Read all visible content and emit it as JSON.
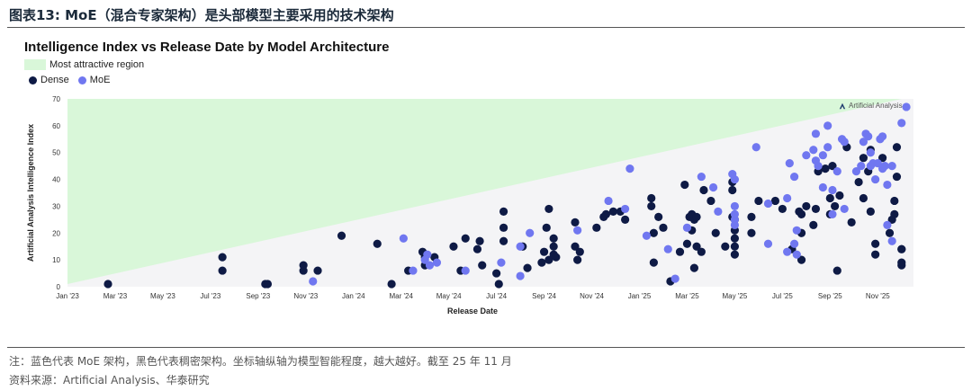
{
  "figure": {
    "title": "图表13:  MoE（混合专家架构）是头部模型主要采用的技术架构",
    "note": "注：蓝色代表 MoE 架构，黑色代表稠密架构。坐标轴纵轴为模型智能程度，越大越好。截至 25 年 11 月",
    "source": "资料来源：Artificial Analysis、华泰研究"
  },
  "watermark": "Artificial Analysis",
  "colors": {
    "dense": "#0e1a45",
    "moe": "#7077f0",
    "region": "#d9f7d9",
    "plot_bg": "#f4f4f6"
  },
  "chart_data": {
    "type": "scatter",
    "title": "Intelligence Index vs Release Date by Model Architecture",
    "xlabel": "Release Date",
    "ylabel": "Artificial Analysis Intelligence Index",
    "x_ticks": [
      "Jan '23",
      "Mar '23",
      "May '23",
      "Jul '23",
      "Sep '23",
      "Nov '23",
      "Jan '24",
      "Mar '24",
      "May '24",
      "Jul '24",
      "Sep '24",
      "Nov '24",
      "Jan '25",
      "Mar '25",
      "May '25",
      "Jul '25",
      "Sep '25",
      "Nov '25"
    ],
    "y_ticks": [
      0,
      10,
      20,
      30,
      40,
      50,
      60,
      70
    ],
    "ylim": [
      0,
      70
    ],
    "xlim": [
      "Jan '23",
      "Dec '25"
    ],
    "grid": false,
    "legend_position": "top-left",
    "region_label": "Most attractive region",
    "region": [
      {
        "x": 0,
        "y": 1
      },
      {
        "x": 35,
        "y": 70
      }
    ],
    "series": [
      {
        "name": "Dense",
        "points": [
          [
            1.7,
            1
          ],
          [
            6.5,
            11
          ],
          [
            6.5,
            6
          ],
          [
            8.3,
            1
          ],
          [
            8.4,
            1
          ],
          [
            9.9,
            6
          ],
          [
            9.9,
            8
          ],
          [
            10.5,
            6
          ],
          [
            11.5,
            19
          ],
          [
            13,
            16
          ],
          [
            13.6,
            1
          ],
          [
            14.3,
            6
          ],
          [
            14.9,
            13
          ],
          [
            15,
            11
          ],
          [
            15,
            8
          ],
          [
            15.4,
            11
          ],
          [
            16.2,
            15
          ],
          [
            16.5,
            6
          ],
          [
            16.7,
            18
          ],
          [
            17.2,
            14
          ],
          [
            17.3,
            17
          ],
          [
            17.4,
            8
          ],
          [
            18,
            5
          ],
          [
            18.1,
            1
          ],
          [
            18.3,
            17
          ],
          [
            18.3,
            22
          ],
          [
            18.3,
            28
          ],
          [
            19.1,
            15
          ],
          [
            19.3,
            7
          ],
          [
            19.9,
            9
          ],
          [
            20,
            13
          ],
          [
            20.1,
            22
          ],
          [
            20.2,
            10
          ],
          [
            20.2,
            29
          ],
          [
            20.4,
            12
          ],
          [
            20.4,
            15
          ],
          [
            20.4,
            18
          ],
          [
            20.5,
            11
          ],
          [
            21.3,
            24
          ],
          [
            21.3,
            15
          ],
          [
            21.4,
            10
          ],
          [
            21.5,
            13
          ],
          [
            22.2,
            22
          ],
          [
            22.5,
            26
          ],
          [
            22.6,
            27
          ],
          [
            22.9,
            28
          ],
          [
            23.2,
            28
          ],
          [
            23.4,
            25
          ],
          [
            24.5,
            33
          ],
          [
            24.5,
            30
          ],
          [
            24.6,
            20
          ],
          [
            24.6,
            9
          ],
          [
            24.8,
            26
          ],
          [
            25,
            22
          ],
          [
            25.3,
            2
          ],
          [
            25.7,
            13
          ],
          [
            25.9,
            38
          ],
          [
            26,
            16
          ],
          [
            26.1,
            26
          ],
          [
            26.2,
            27
          ],
          [
            26.2,
            21
          ],
          [
            26.3,
            25
          ],
          [
            26.3,
            7
          ],
          [
            26.4,
            15
          ],
          [
            26.4,
            26
          ],
          [
            26.6,
            13
          ],
          [
            26.7,
            36
          ],
          [
            27,
            32
          ],
          [
            27.2,
            20
          ],
          [
            27.6,
            15
          ],
          [
            27.9,
            39
          ],
          [
            27.9,
            36
          ],
          [
            27.9,
            26
          ],
          [
            28,
            25
          ],
          [
            28,
            21
          ],
          [
            28,
            18
          ],
          [
            28,
            15
          ],
          [
            28,
            12
          ],
          [
            28.7,
            26
          ],
          [
            28.7,
            20
          ],
          [
            29,
            32
          ],
          [
            29.7,
            32
          ],
          [
            30,
            29
          ],
          [
            30.4,
            14
          ],
          [
            30.7,
            28
          ],
          [
            30.8,
            20
          ],
          [
            30.8,
            10
          ],
          [
            30.8,
            27
          ],
          [
            31,
            30
          ],
          [
            31.3,
            23
          ],
          [
            31.4,
            29
          ],
          [
            31.5,
            43
          ],
          [
            31.8,
            44
          ],
          [
            32,
            33
          ],
          [
            32,
            27
          ],
          [
            32.1,
            45
          ],
          [
            32.2,
            30
          ],
          [
            32.3,
            6
          ],
          [
            32.4,
            34
          ],
          [
            32.7,
            52
          ],
          [
            32.9,
            24
          ],
          [
            33.2,
            39
          ],
          [
            33.4,
            48
          ],
          [
            33.4,
            33
          ],
          [
            33.6,
            43
          ],
          [
            33.7,
            51
          ],
          [
            33.7,
            28
          ],
          [
            33.9,
            12
          ],
          [
            33.9,
            16
          ],
          [
            34.2,
            48
          ],
          [
            34.5,
            20
          ],
          [
            34.6,
            25
          ],
          [
            34.7,
            27
          ],
          [
            34.7,
            32
          ],
          [
            34.8,
            52
          ],
          [
            34.8,
            41
          ],
          [
            35,
            14
          ],
          [
            35,
            14
          ],
          [
            35,
            8
          ],
          [
            35,
            9
          ]
        ]
      },
      {
        "name": "MoE",
        "points": [
          [
            10.3,
            2
          ],
          [
            14.1,
            18
          ],
          [
            14.5,
            6
          ],
          [
            15,
            10
          ],
          [
            15.1,
            12
          ],
          [
            15.2,
            8
          ],
          [
            15.5,
            9
          ],
          [
            16.7,
            6
          ],
          [
            18.2,
            9
          ],
          [
            19,
            15
          ],
          [
            19,
            4
          ],
          [
            19.4,
            20
          ],
          [
            21.4,
            21
          ],
          [
            22.7,
            32
          ],
          [
            23.4,
            29
          ],
          [
            23.6,
            44
          ],
          [
            24.3,
            19
          ],
          [
            25.2,
            14
          ],
          [
            25.5,
            3
          ],
          [
            26,
            22
          ],
          [
            26.6,
            41
          ],
          [
            27.1,
            37
          ],
          [
            27.3,
            28
          ],
          [
            27.9,
            42
          ],
          [
            28,
            40
          ],
          [
            28,
            30
          ],
          [
            28,
            25
          ],
          [
            28,
            27
          ],
          [
            28,
            23
          ],
          [
            28.9,
            52
          ],
          [
            29.4,
            31
          ],
          [
            29.4,
            16
          ],
          [
            30.2,
            33
          ],
          [
            30.2,
            13
          ],
          [
            30.3,
            46
          ],
          [
            30.5,
            41
          ],
          [
            30.5,
            16
          ],
          [
            30.6,
            12
          ],
          [
            30.6,
            21
          ],
          [
            31,
            49
          ],
          [
            31.3,
            51
          ],
          [
            31.4,
            57
          ],
          [
            31.4,
            47
          ],
          [
            31.5,
            45
          ],
          [
            31.7,
            49
          ],
          [
            31.7,
            37
          ],
          [
            31.9,
            52
          ],
          [
            31.9,
            60
          ],
          [
            32.1,
            36
          ],
          [
            32.1,
            27
          ],
          [
            32.3,
            43
          ],
          [
            32.5,
            55
          ],
          [
            32.6,
            29
          ],
          [
            32.6,
            54
          ],
          [
            33.1,
            43
          ],
          [
            33.3,
            45
          ],
          [
            33.4,
            54
          ],
          [
            33.5,
            57
          ],
          [
            33.6,
            56
          ],
          [
            33.7,
            50
          ],
          [
            33.7,
            45
          ],
          [
            33.8,
            46
          ],
          [
            33.9,
            40
          ],
          [
            34,
            46
          ],
          [
            34.1,
            55
          ],
          [
            34.2,
            44
          ],
          [
            34.2,
            56
          ],
          [
            34.3,
            45
          ],
          [
            34.4,
            38
          ],
          [
            34.4,
            23
          ],
          [
            34.6,
            17
          ],
          [
            34.6,
            45
          ],
          [
            35,
            61
          ],
          [
            35.2,
            67
          ]
        ]
      }
    ]
  }
}
